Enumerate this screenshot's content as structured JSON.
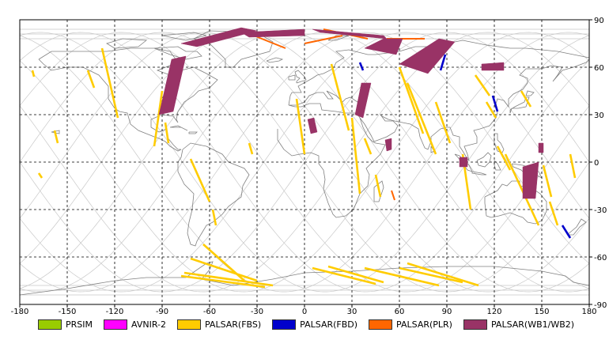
{
  "map": {
    "lon_ticks": [
      -180,
      -150,
      -120,
      -90,
      -60,
      -30,
      0,
      30,
      60,
      90,
      120,
      150,
      180
    ],
    "lat_ticks": [
      90,
      60,
      30,
      0,
      -30,
      -60,
      -90
    ],
    "lon_labels": [
      "-180",
      "-150",
      "-120",
      "-90",
      "-60",
      "-30",
      "0",
      "30",
      "60",
      "90",
      "120",
      "150",
      "180"
    ],
    "lat_labels": [
      "90",
      "60",
      "30",
      "0",
      "-30",
      "-60",
      "-90"
    ],
    "extent": {
      "lon": [
        -180,
        180
      ],
      "lat": [
        -90,
        90
      ]
    },
    "grid": "dashed",
    "colors": {
      "prsim": "#99cc00",
      "avnir": "#ff00ff",
      "fbs": "#ffcc00",
      "fbd": "#0000cc",
      "plr": "#ff6600",
      "wb": "#993366",
      "coast": "#808080",
      "orbit": "#c8c8c8"
    }
  },
  "legend": [
    {
      "label": "PRSIM",
      "color": "#99cc00"
    },
    {
      "label": "AVNIR-2",
      "color": "#ff00ff"
    },
    {
      "label": "PALSAR(FBS)",
      "color": "#ffcc00"
    },
    {
      "label": "PALSAR(FBD)",
      "color": "#0000cc"
    },
    {
      "label": "PALSAR(PLR)",
      "color": "#ff6600"
    },
    {
      "label": "PALSAR(WB1/WB2)",
      "color": "#993366"
    }
  ],
  "swaths": {
    "fbs": [
      [
        [
          -128,
          72
        ],
        [
          -118,
          28
        ]
      ],
      [
        [
          -137,
          58
        ],
        [
          -133,
          47
        ]
      ],
      [
        [
          -90,
          45
        ],
        [
          -95,
          10
        ]
      ],
      [
        [
          -72,
          2
        ],
        [
          -60,
          -25
        ]
      ],
      [
        [
          -88,
          25
        ],
        [
          -86,
          12
        ]
      ],
      [
        [
          -58,
          -30
        ],
        [
          -56,
          -40
        ]
      ],
      [
        [
          -35,
          12
        ],
        [
          -33,
          5
        ]
      ],
      [
        [
          -158,
          20
        ],
        [
          -156,
          12
        ]
      ],
      [
        [
          -172,
          58
        ],
        [
          -171,
          54
        ]
      ],
      [
        [
          -168,
          -7
        ],
        [
          -166,
          -10
        ]
      ],
      [
        [
          -5,
          40
        ],
        [
          0,
          5
        ]
      ],
      [
        [
          17,
          62
        ],
        [
          28,
          20
        ]
      ],
      [
        [
          30,
          28
        ],
        [
          35,
          -20
        ]
      ],
      [
        [
          38,
          15
        ],
        [
          42,
          5
        ]
      ],
      [
        [
          45,
          -8
        ],
        [
          48,
          -22
        ]
      ],
      [
        [
          60,
          60
        ],
        [
          75,
          18
        ]
      ],
      [
        [
          65,
          50
        ],
        [
          83,
          5
        ]
      ],
      [
        [
          83,
          38
        ],
        [
          92,
          12
        ]
      ],
      [
        [
          100,
          5
        ],
        [
          105,
          -30
        ]
      ],
      [
        [
          108,
          55
        ],
        [
          117,
          42
        ]
      ],
      [
        [
          115,
          38
        ],
        [
          121,
          28
        ]
      ],
      [
        [
          122,
          10
        ],
        [
          130,
          -5
        ]
      ],
      [
        [
          127,
          5
        ],
        [
          148,
          -40
        ]
      ],
      [
        [
          137,
          45
        ],
        [
          143,
          35
        ]
      ],
      [
        [
          151,
          -2
        ],
        [
          156,
          -22
        ]
      ],
      [
        [
          155,
          -25
        ],
        [
          160,
          -40
        ]
      ],
      [
        [
          168,
          5
        ],
        [
          171,
          -10
        ]
      ],
      [
        [
          -64,
          -52
        ],
        [
          -38,
          -75
        ]
      ],
      [
        [
          -72,
          -61
        ],
        [
          -30,
          -75
        ]
      ],
      [
        [
          -76,
          -70
        ],
        [
          -20,
          -78
        ]
      ],
      [
        [
          -78,
          -72
        ],
        [
          -25,
          -79
        ]
      ],
      [
        [
          5,
          -67
        ],
        [
          45,
          -77
        ]
      ],
      [
        [
          15,
          -66
        ],
        [
          50,
          -76
        ]
      ],
      [
        [
          38,
          -67
        ],
        [
          85,
          -78
        ]
      ],
      [
        [
          60,
          -67
        ],
        [
          100,
          -76
        ]
      ],
      [
        [
          65,
          -64
        ],
        [
          110,
          -78
        ]
      ]
    ],
    "fbd": [
      [
        [
          35,
          63
        ],
        [
          37,
          58
        ]
      ],
      [
        [
          89,
          68
        ],
        [
          86,
          58
        ]
      ],
      [
        [
          119,
          42
        ],
        [
          122,
          32
        ]
      ],
      [
        [
          163,
          -40
        ],
        [
          168,
          -48
        ]
      ]
    ],
    "plr": [
      [
        [
          -42,
          84
        ],
        [
          -12,
          72
        ]
      ],
      [
        [
          -30,
          80
        ],
        [
          0,
          83
        ]
      ],
      [
        [
          0,
          75
        ],
        [
          24,
          80
        ]
      ],
      [
        [
          12,
          84
        ],
        [
          40,
          78
        ]
      ],
      [
        [
          52,
          78
        ],
        [
          76,
          78
        ]
      ],
      [
        [
          55,
          -18
        ],
        [
          57,
          -24
        ]
      ]
    ],
    "wb": [
      [
        [
          -92,
          30
        ],
        [
          -84,
          65
        ],
        [
          -75,
          67
        ],
        [
          -83,
          32
        ]
      ],
      [
        [
          -78,
          75
        ],
        [
          -40,
          85
        ],
        [
          -30,
          83
        ],
        [
          -68,
          73
        ]
      ],
      [
        [
          -40,
          82
        ],
        [
          0,
          84
        ],
        [
          0,
          80
        ],
        [
          -35,
          79
        ]
      ],
      [
        [
          5,
          84
        ],
        [
          50,
          80
        ],
        [
          52,
          78
        ],
        [
          10,
          82
        ]
      ],
      [
        [
          38,
          72
        ],
        [
          50,
          78
        ],
        [
          62,
          78
        ],
        [
          58,
          68
        ]
      ],
      [
        [
          60,
          62
        ],
        [
          85,
          78
        ],
        [
          95,
          76
        ],
        [
          78,
          56
        ]
      ],
      [
        [
          32,
          30
        ],
        [
          36,
          50
        ],
        [
          42,
          50
        ],
        [
          37,
          28
        ]
      ],
      [
        [
          2,
          27
        ],
        [
          6,
          28
        ],
        [
          8,
          19
        ],
        [
          4,
          18
        ]
      ],
      [
        [
          51,
          14
        ],
        [
          55,
          15
        ],
        [
          55,
          8
        ],
        [
          52,
          7
        ]
      ],
      [
        [
          112,
          62
        ],
        [
          126,
          63
        ],
        [
          126,
          58
        ],
        [
          112,
          58
        ]
      ],
      [
        [
          98,
          3
        ],
        [
          103,
          3
        ],
        [
          103,
          -3
        ],
        [
          98,
          -3
        ]
      ],
      [
        [
          138,
          -3
        ],
        [
          148,
          0
        ],
        [
          146,
          -23
        ],
        [
          138,
          -23
        ]
      ],
      [
        [
          148,
          12
        ],
        [
          151,
          12
        ],
        [
          151,
          6
        ],
        [
          148,
          6
        ]
      ]
    ]
  }
}
